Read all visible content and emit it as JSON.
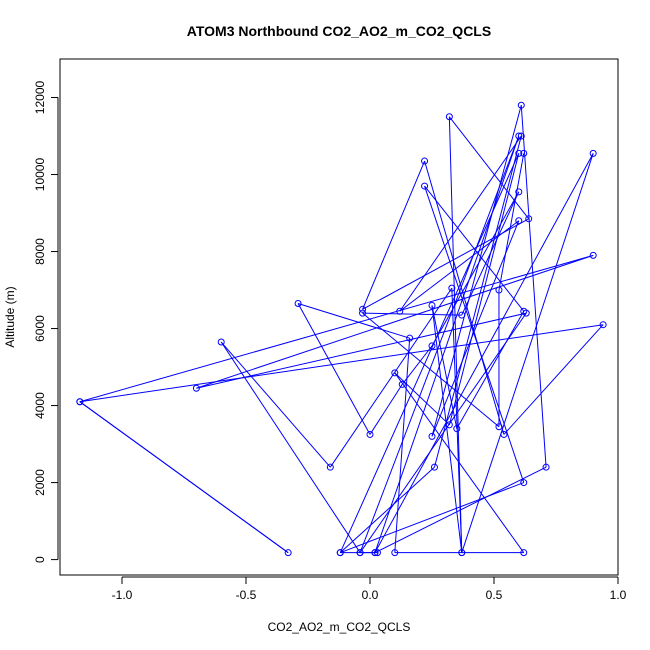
{
  "chart_data": {
    "type": "line",
    "title": "ATOM3 Northbound CO2_AO2_m_CO2_QCLS",
    "xlabel": "CO2_AO2_m_CO2_QCLS",
    "ylabel": "Altitude (m)",
    "xlim": [
      -1.25,
      1.0
    ],
    "ylim": [
      -400,
      13000
    ],
    "x_ticks": [
      -1.0,
      -0.5,
      0.0,
      0.5,
      1.0
    ],
    "x_tick_labels": [
      "-1.0",
      "-0.5",
      "0.0",
      "0.5",
      "1.0"
    ],
    "y_ticks": [
      0,
      2000,
      4000,
      6000,
      8000,
      10000,
      12000
    ],
    "y_tick_labels": [
      "0",
      "2000",
      "4000",
      "6000",
      "8000",
      "10000",
      "12000"
    ],
    "grid": false,
    "legend": "none",
    "series": [
      {
        "color": "#0000ff",
        "marker": "open-circle",
        "points": [
          {
            "x": 0.03,
            "y": 180
          },
          {
            "x": -0.04,
            "y": 180
          },
          {
            "x": 0.6,
            "y": 11000
          },
          {
            "x": 0.02,
            "y": 180
          },
          {
            "x": 0.71,
            "y": 2400
          },
          {
            "x": 0.61,
            "y": 11800
          },
          {
            "x": 0.25,
            "y": 3200
          },
          {
            "x": 0.6,
            "y": 8800
          },
          {
            "x": 0.12,
            "y": 6450
          },
          {
            "x": 0.61,
            "y": 11000
          },
          {
            "x": 0.26,
            "y": 2400
          },
          {
            "x": -0.12,
            "y": 180
          },
          {
            "x": 0.02,
            "y": 180
          },
          {
            "x": 0.9,
            "y": 10550
          },
          {
            "x": 0.37,
            "y": 180
          },
          {
            "x": 0.33,
            "y": 7050
          },
          {
            "x": -0.16,
            "y": 2400
          },
          {
            "x": -0.6,
            "y": 5650
          },
          {
            "x": -0.04,
            "y": 180
          },
          {
            "x": 0.63,
            "y": 6400
          },
          {
            "x": -0.7,
            "y": 4450
          },
          {
            "x": 0.9,
            "y": 7900
          },
          {
            "x": -1.17,
            "y": 4100
          },
          {
            "x": -0.33,
            "y": 180
          },
          {
            "x": -1.17,
            "y": 4100
          },
          {
            "x": 0.94,
            "y": 6100
          },
          {
            "x": 0.54,
            "y": 3250
          },
          {
            "x": 0.22,
            "y": 10350
          },
          {
            "x": -0.03,
            "y": 6500
          },
          {
            "x": 0.64,
            "y": 8850
          },
          {
            "x": 0.32,
            "y": 11500
          },
          {
            "x": 0.37,
            "y": 180
          },
          {
            "x": 0.25,
            "y": 6600
          },
          {
            "x": 0.35,
            "y": 3400
          },
          {
            "x": 0.62,
            "y": 6450
          },
          {
            "x": 0.22,
            "y": 9700
          },
          {
            "x": 0.62,
            "y": 2000
          },
          {
            "x": -0.12,
            "y": 180
          },
          {
            "x": 0.6,
            "y": 10550
          },
          {
            "x": 0.32,
            "y": 3500
          },
          {
            "x": 0.1,
            "y": 4850
          },
          {
            "x": 0.62,
            "y": 180
          },
          {
            "x": 0.1,
            "y": 180
          },
          {
            "x": 0.16,
            "y": 5750
          },
          {
            "x": -0.29,
            "y": 6650
          },
          {
            "x": 0.0,
            "y": 3250
          },
          {
            "x": 0.13,
            "y": 4550
          },
          {
            "x": 0.25,
            "y": 5550
          },
          {
            "x": 0.6,
            "y": 9550
          },
          {
            "x": 0.37,
            "y": 6350
          },
          {
            "x": -0.03,
            "y": 6400
          },
          {
            "x": 0.52,
            "y": 3450
          },
          {
            "x": 0.52,
            "y": 7000
          },
          {
            "x": 0.62,
            "y": 10550
          }
        ]
      }
    ]
  }
}
